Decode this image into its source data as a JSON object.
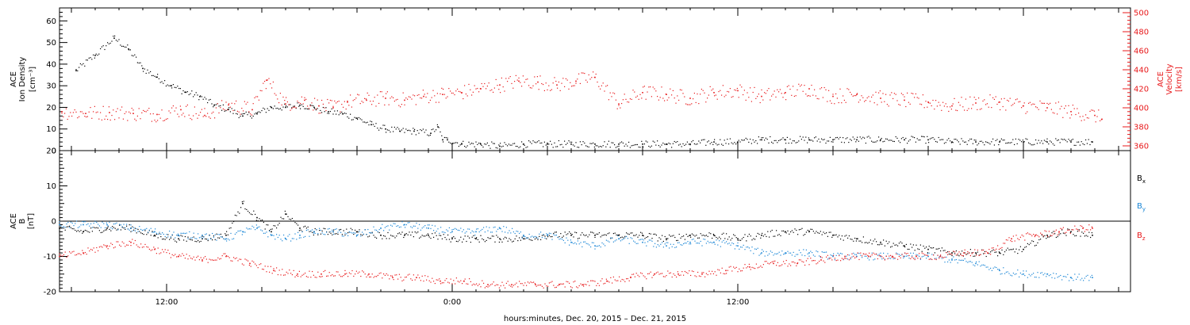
{
  "xlabel": "hours:minutes, Dec. 20, 2015 – Dec. 21, 2015",
  "x_axis": {
    "range_hours": [
      -16.5,
      28.5
    ],
    "tick_labels": [
      {
        "hour": -12,
        "label": "12:00"
      },
      {
        "hour": 0,
        "label": "0:00"
      },
      {
        "hour": 12,
        "label": "12:00"
      }
    ]
  },
  "colors": {
    "black": "#000000",
    "red": "#e8191b",
    "blue": "#1a86d6",
    "red_axis": "#e8191b"
  },
  "chart_data": [
    {
      "type": "scatter",
      "panel": "top",
      "ylabel": [
        "ACE",
        "Ion Density",
        "[cm⁻³]"
      ],
      "ylim": [
        0,
        66
      ],
      "yticks": [
        0,
        10,
        20,
        30,
        40,
        50,
        60
      ],
      "y2label": [
        "ACE",
        "Velocity",
        "[km/s]"
      ],
      "y2lim": [
        355,
        505
      ],
      "y2ticks": [
        360,
        380,
        400,
        420,
        440,
        460,
        480,
        500
      ],
      "grid": false,
      "series": [
        {
          "color": "black",
          "axis": "left",
          "points": [
            [
              -15.8,
              37
            ],
            [
              -15.0,
              44
            ],
            [
              -14.2,
              52
            ],
            [
              -13.6,
              47
            ],
            [
              -13.0,
              38
            ],
            [
              -12.4,
              34
            ],
            [
              -11.8,
              30
            ],
            [
              -11.2,
              27
            ],
            [
              -10.6,
              25
            ],
            [
              -10.0,
              21
            ],
            [
              -9.4,
              19
            ],
            [
              -8.8,
              16
            ],
            [
              -8.2,
              17
            ],
            [
              -7.6,
              20
            ],
            [
              -7.0,
              20
            ],
            [
              -6.4,
              21
            ],
            [
              -5.8,
              20
            ],
            [
              -5.2,
              18
            ],
            [
              -4.6,
              17
            ],
            [
              -4.0,
              15
            ],
            [
              -3.4,
              12
            ],
            [
              -2.8,
              10
            ],
            [
              -2.2,
              9
            ],
            [
              -1.6,
              9
            ],
            [
              -0.9,
              8
            ],
            [
              -0.6,
              11
            ],
            [
              -0.4,
              5
            ],
            [
              -0.2,
              5
            ],
            [
              0.4,
              3
            ],
            [
              1.2,
              3
            ],
            [
              2.0,
              2
            ],
            [
              3.0,
              3
            ],
            [
              4.0,
              3
            ],
            [
              5.0,
              3
            ],
            [
              6.0,
              3
            ],
            [
              7.0,
              3
            ],
            [
              8.0,
              3
            ],
            [
              9.0,
              3
            ],
            [
              10.0,
              3
            ],
            [
              11.0,
              4
            ],
            [
              12.0,
              4
            ],
            [
              13.0,
              5
            ],
            [
              14.0,
              5
            ],
            [
              15.0,
              5
            ],
            [
              16.0,
              5
            ],
            [
              17.0,
              5
            ],
            [
              18.0,
              5
            ],
            [
              19.0,
              5
            ],
            [
              20.0,
              5
            ],
            [
              21.0,
              4
            ],
            [
              22.0,
              4
            ],
            [
              23.0,
              4
            ],
            [
              24.0,
              4
            ],
            [
              25.0,
              4
            ],
            [
              26.0,
              4
            ],
            [
              26.9,
              4
            ]
          ]
        },
        {
          "color": "red",
          "axis": "right",
          "points": [
            [
              -16.4,
              396
            ],
            [
              -15.4,
              394
            ],
            [
              -14.4,
              395
            ],
            [
              -13.4,
              394
            ],
            [
              -12.4,
              393
            ],
            [
              -11.4,
              398
            ],
            [
              -10.4,
              392
            ],
            [
              -9.4,
              403
            ],
            [
              -8.4,
              398
            ],
            [
              -7.8,
              429
            ],
            [
              -7.0,
              404
            ],
            [
              -6.2,
              408
            ],
            [
              -5.6,
              402
            ],
            [
              -5.0,
              400
            ],
            [
              -4.4,
              406
            ],
            [
              -3.6,
              408
            ],
            [
              -2.8,
              410
            ],
            [
              -2.0,
              408
            ],
            [
              -1.2,
              412
            ],
            [
              -0.4,
              414
            ],
            [
              0.4,
              416
            ],
            [
              1.2,
              420
            ],
            [
              2.0,
              424
            ],
            [
              2.8,
              428
            ],
            [
              3.6,
              427
            ],
            [
              4.4,
              424
            ],
            [
              5.2,
              428
            ],
            [
              6.0,
              432
            ],
            [
              7.0,
              404
            ],
            [
              8.0,
              416
            ],
            [
              9.0,
              414
            ],
            [
              10.0,
              410
            ],
            [
              11.0,
              416
            ],
            [
              12.0,
              418
            ],
            [
              13.0,
              412
            ],
            [
              14.0,
              416
            ],
            [
              15.0,
              420
            ],
            [
              16.0,
              412
            ],
            [
              17.0,
              414
            ],
            [
              18.0,
              410
            ],
            [
              19.0,
              408
            ],
            [
              20.0,
              406
            ],
            [
              21.0,
              402
            ],
            [
              22.0,
              405
            ],
            [
              23.0,
              406
            ],
            [
              24.0,
              402
            ],
            [
              25.0,
              400
            ],
            [
              26.0,
              396
            ],
            [
              27.0,
              392
            ],
            [
              27.3,
              388
            ]
          ]
        }
      ]
    },
    {
      "type": "scatter",
      "panel": "bottom",
      "ylabel": [
        "ACE",
        "B",
        "[nT]"
      ],
      "ylim": [
        -20,
        20
      ],
      "yticks": [
        -20,
        -10,
        0,
        10,
        20
      ],
      "zero_line": true,
      "grid": false,
      "legend_position": "right",
      "legend": [
        "Bx",
        "By",
        "Bz"
      ],
      "series": [
        {
          "name": "Bx",
          "color": "black",
          "points": [
            [
              -16.5,
              -2
            ],
            [
              -15.5,
              -3
            ],
            [
              -14.5,
              -2
            ],
            [
              -13.5,
              -2
            ],
            [
              -12.5,
              -4
            ],
            [
              -11.5,
              -5
            ],
            [
              -10.5,
              -5
            ],
            [
              -9.5,
              -4
            ],
            [
              -8.8,
              5
            ],
            [
              -8.2,
              1
            ],
            [
              -7.6,
              -3
            ],
            [
              -7.0,
              2
            ],
            [
              -6.4,
              -2
            ],
            [
              -5.8,
              -3
            ],
            [
              -5.0,
              -3
            ],
            [
              -4.0,
              -3
            ],
            [
              -3.0,
              -4
            ],
            [
              -2.0,
              -4
            ],
            [
              -1.0,
              -4
            ],
            [
              0.0,
              -5
            ],
            [
              1.0,
              -5
            ],
            [
              2.0,
              -5
            ],
            [
              3.0,
              -5
            ],
            [
              4.0,
              -4
            ],
            [
              5.0,
              -4
            ],
            [
              6.0,
              -4
            ],
            [
              7.0,
              -4
            ],
            [
              8.0,
              -4
            ],
            [
              9.0,
              -5
            ],
            [
              10.0,
              -4
            ],
            [
              11.0,
              -4
            ],
            [
              12.0,
              -5
            ],
            [
              13.0,
              -4
            ],
            [
              14.0,
              -3
            ],
            [
              15.0,
              -3
            ],
            [
              16.0,
              -4
            ],
            [
              17.0,
              -5
            ],
            [
              18.0,
              -6
            ],
            [
              19.0,
              -7
            ],
            [
              20.0,
              -8
            ],
            [
              21.0,
              -9
            ],
            [
              22.0,
              -9
            ],
            [
              23.0,
              -9
            ],
            [
              24.0,
              -8
            ],
            [
              25.0,
              -4
            ],
            [
              26.0,
              -3
            ],
            [
              26.9,
              -4
            ]
          ]
        },
        {
          "name": "By",
          "color": "blue",
          "points": [
            [
              -16.5,
              -1
            ],
            [
              -15.5,
              -1
            ],
            [
              -14.5,
              -1
            ],
            [
              -13.5,
              -2
            ],
            [
              -12.5,
              -3
            ],
            [
              -11.5,
              -4
            ],
            [
              -10.5,
              -4
            ],
            [
              -9.5,
              -5
            ],
            [
              -8.8,
              -3
            ],
            [
              -8.2,
              -2
            ],
            [
              -7.6,
              -4
            ],
            [
              -7.0,
              -5
            ],
            [
              -6.4,
              -4
            ],
            [
              -5.8,
              -3
            ],
            [
              -5.0,
              -3
            ],
            [
              -4.0,
              -4
            ],
            [
              -3.0,
              -2
            ],
            [
              -2.0,
              -1
            ],
            [
              -1.0,
              -2
            ],
            [
              0.0,
              -3
            ],
            [
              1.0,
              -3
            ],
            [
              2.0,
              -2
            ],
            [
              3.0,
              -4
            ],
            [
              4.0,
              -4
            ],
            [
              5.0,
              -6
            ],
            [
              6.0,
              -7
            ],
            [
              7.0,
              -5
            ],
            [
              8.0,
              -6
            ],
            [
              9.0,
              -7
            ],
            [
              10.0,
              -6
            ],
            [
              11.0,
              -6
            ],
            [
              12.0,
              -7
            ],
            [
              13.0,
              -9
            ],
            [
              14.0,
              -9
            ],
            [
              15.0,
              -9
            ],
            [
              16.0,
              -10
            ],
            [
              17.0,
              -10
            ],
            [
              18.0,
              -10
            ],
            [
              19.0,
              -10
            ],
            [
              20.0,
              -10
            ],
            [
              21.0,
              -11
            ],
            [
              22.0,
              -12
            ],
            [
              23.0,
              -14
            ],
            [
              24.0,
              -15
            ],
            [
              25.0,
              -15
            ],
            [
              26.0,
              -16
            ],
            [
              26.9,
              -16
            ]
          ]
        },
        {
          "name": "Bz",
          "color": "red",
          "points": [
            [
              -16.5,
              -10
            ],
            [
              -15.5,
              -9
            ],
            [
              -14.5,
              -7
            ],
            [
              -13.5,
              -6
            ],
            [
              -12.5,
              -8
            ],
            [
              -11.5,
              -10
            ],
            [
              -10.5,
              -11
            ],
            [
              -9.5,
              -10
            ],
            [
              -8.5,
              -12
            ],
            [
              -7.5,
              -14
            ],
            [
              -6.5,
              -15
            ],
            [
              -5.5,
              -15
            ],
            [
              -4.5,
              -15
            ],
            [
              -3.5,
              -15
            ],
            [
              -2.5,
              -16
            ],
            [
              -1.5,
              -16
            ],
            [
              -0.5,
              -17
            ],
            [
              0.5,
              -17
            ],
            [
              1.5,
              -18
            ],
            [
              2.5,
              -18
            ],
            [
              3.5,
              -18
            ],
            [
              4.5,
              -18
            ],
            [
              5.5,
              -18
            ],
            [
              6.5,
              -17
            ],
            [
              7.5,
              -16
            ],
            [
              8.5,
              -15
            ],
            [
              9.5,
              -15
            ],
            [
              10.5,
              -15
            ],
            [
              11.5,
              -14
            ],
            [
              12.5,
              -13
            ],
            [
              13.5,
              -12
            ],
            [
              14.5,
              -12
            ],
            [
              15.5,
              -11
            ],
            [
              16.5,
              -10
            ],
            [
              17.5,
              -10
            ],
            [
              18.5,
              -10
            ],
            [
              19.5,
              -10
            ],
            [
              20.5,
              -10
            ],
            [
              21.5,
              -9
            ],
            [
              22.5,
              -9
            ],
            [
              23.5,
              -5
            ],
            [
              24.5,
              -4
            ],
            [
              25.5,
              -3
            ],
            [
              26.5,
              -2
            ],
            [
              26.9,
              -2
            ]
          ]
        }
      ]
    }
  ]
}
